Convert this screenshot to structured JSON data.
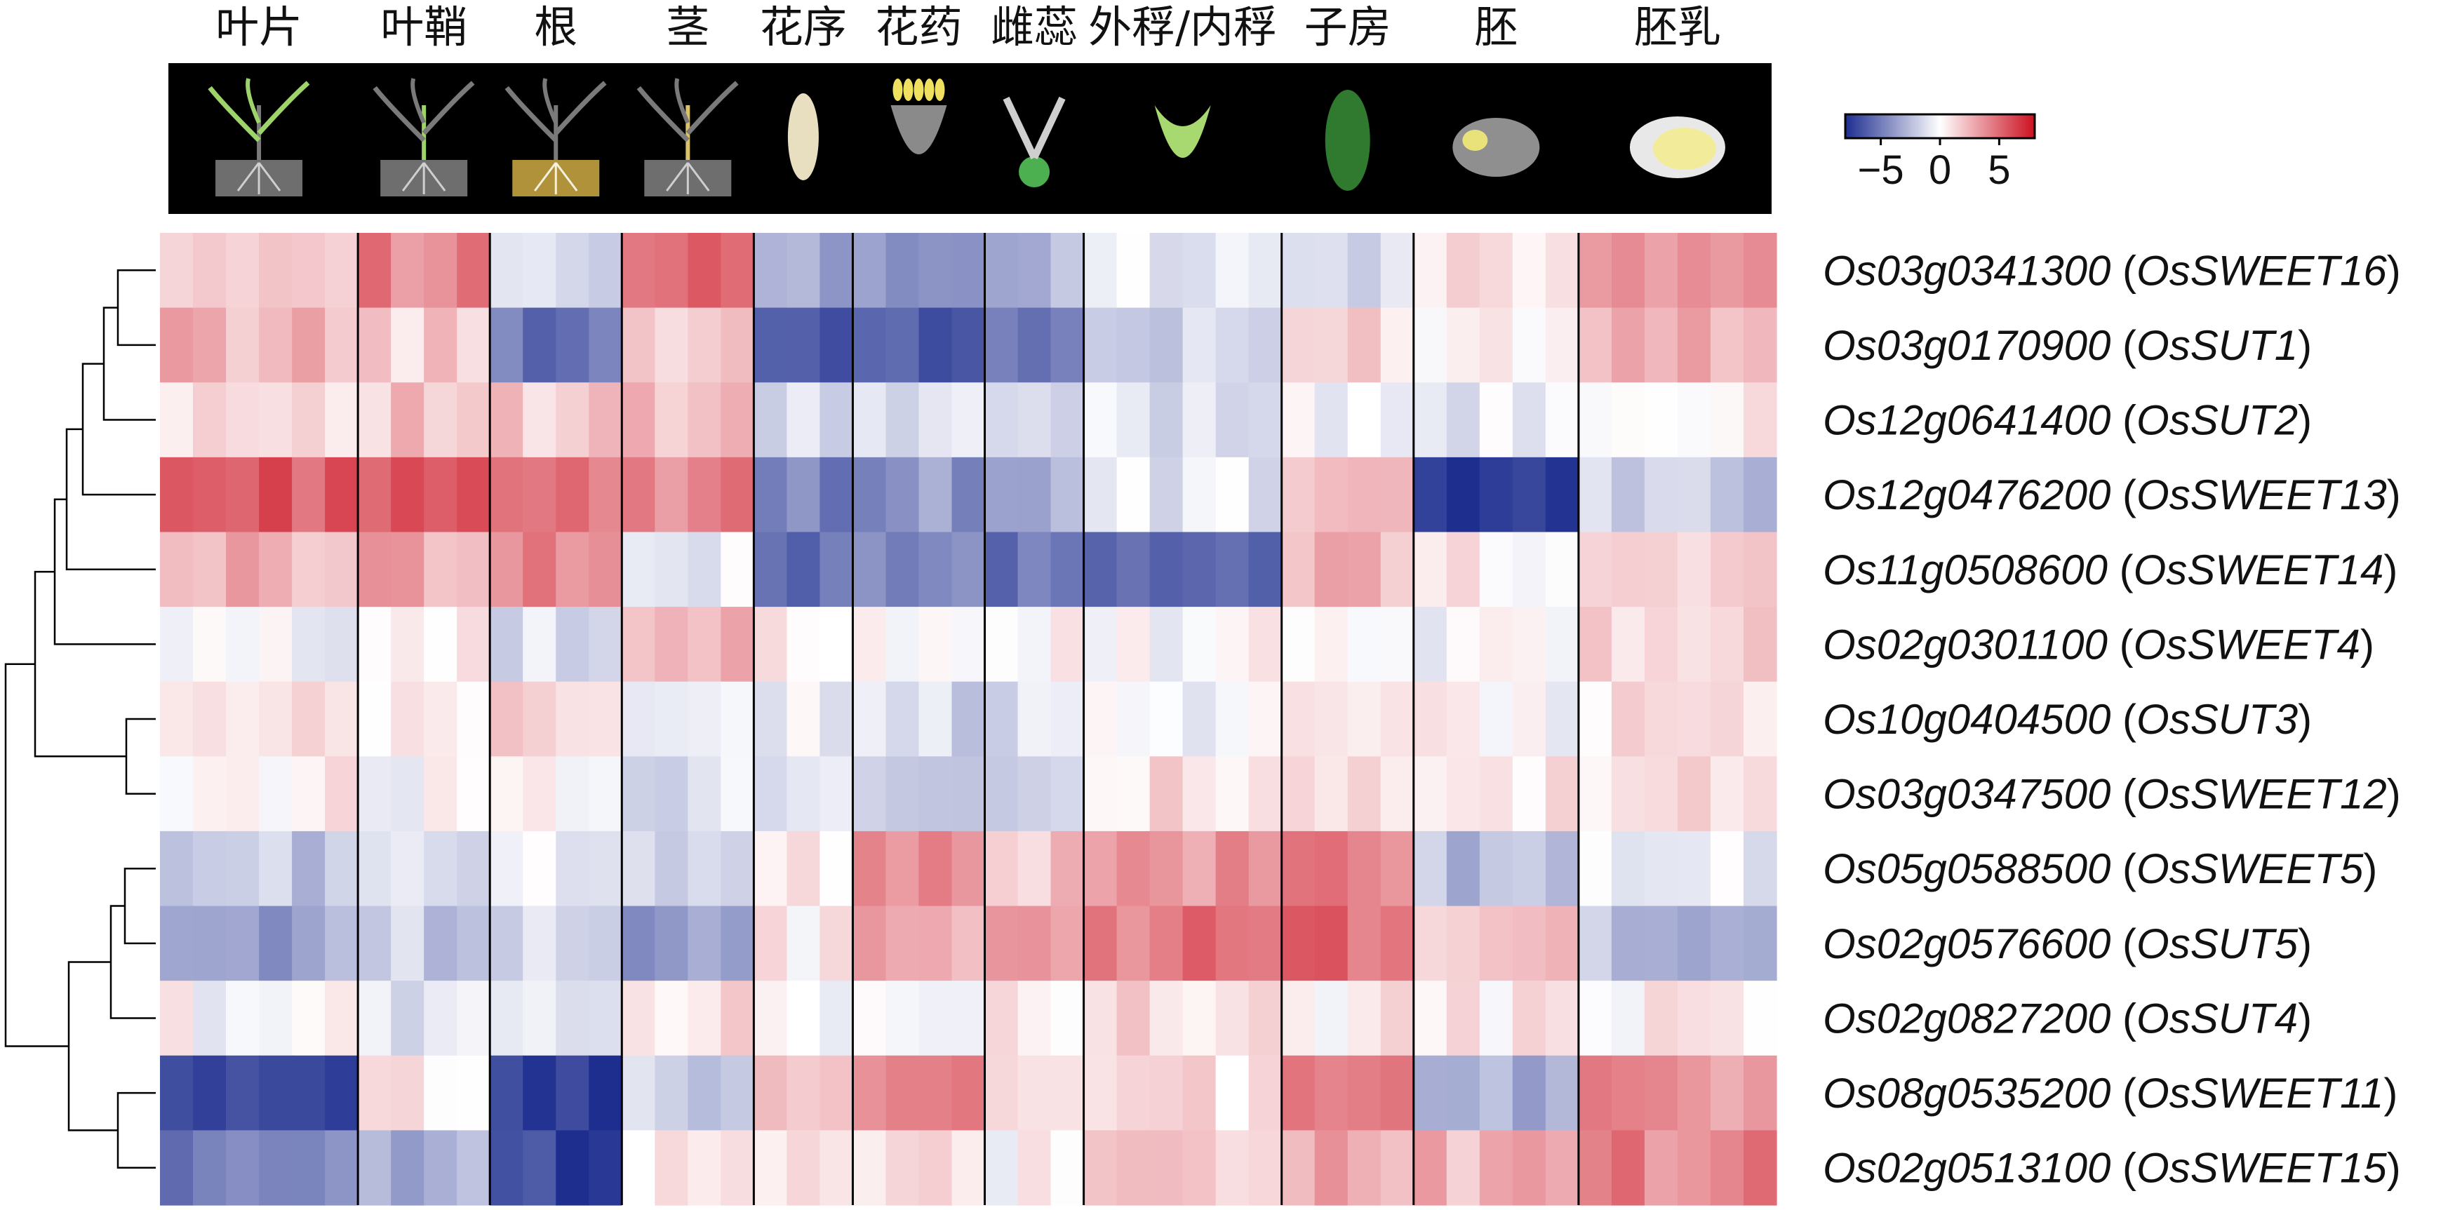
{
  "chart_data": {
    "type": "heatmap",
    "tissues": [
      "叶片",
      "叶鞘",
      "根",
      "茎",
      "花序",
      "花药",
      "雌蕊",
      "外稃/内稃",
      "子房",
      "胚",
      "胚乳"
    ],
    "tissue_replicates": [
      6,
      4,
      4,
      4,
      3,
      4,
      3,
      6,
      4,
      5,
      6
    ],
    "genes": [
      {
        "id": "Os03g0341300",
        "name": "OsSWEET16"
      },
      {
        "id": "Os03g0170900",
        "name": "OsSUT1"
      },
      {
        "id": "Os12g0641400",
        "name": "OsSUT2"
      },
      {
        "id": "Os12g0476200",
        "name": "OsSWEET13"
      },
      {
        "id": "Os11g0508600",
        "name": "OsSWEET14"
      },
      {
        "id": "Os02g0301100",
        "name": "OsSWEET4"
      },
      {
        "id": "Os10g0404500",
        "name": "OsSUT3"
      },
      {
        "id": "Os03g0347500",
        "name": "OsSWEET12"
      },
      {
        "id": "Os05g0588500",
        "name": "OsSWEET5"
      },
      {
        "id": "Os02g0576600",
        "name": "OsSUT5"
      },
      {
        "id": "Os02g0827200",
        "name": "OsSUT4"
      },
      {
        "id": "Os08g0535200",
        "name": "OsSWEET11"
      },
      {
        "id": "Os02g0513100",
        "name": "OsSWEET15"
      }
    ],
    "tissue_means": [
      [
        2.5,
        4.0,
        -1.5,
        4.5,
        -3.5,
        -4.0,
        -3.0,
        -1.0,
        -1.5,
        1.0,
        3.5
      ],
      [
        2.5,
        1.5,
        -5.0,
        2.0,
        -6.0,
        -6.5,
        -5.0,
        -2.0,
        1.5,
        0.5,
        3.0
      ],
      [
        1.5,
        2.0,
        1.5,
        2.0,
        -1.5,
        -1.5,
        -1.5,
        -1.0,
        0.0,
        -1.0,
        0.5
      ],
      [
        5.5,
        6.0,
        4.0,
        4.0,
        -4.5,
        -4.0,
        -3.0,
        -1.0,
        1.5,
        -7.5,
        -2.0
      ],
      [
        2.5,
        3.0,
        4.0,
        -1.0,
        -5.5,
        -4.0,
        -5.5,
        -6.0,
        2.5,
        0.5,
        1.5
      ],
      [
        -0.5,
        1.0,
        -1.5,
        2.0,
        1.0,
        0.5,
        0.5,
        0.0,
        0.5,
        -0.5,
        1.5
      ],
      [
        0.5,
        0.5,
        1.5,
        -1.0,
        -0.5,
        -1.5,
        -1.0,
        0.0,
        0.5,
        0.0,
        1.0
      ],
      [
        0.5,
        0.0,
        0.5,
        -1.0,
        -0.5,
        -1.5,
        -1.5,
        1.0,
        0.5,
        0.5,
        1.0
      ],
      [
        -2.0,
        -1.5,
        -1.0,
        -1.0,
        0.5,
        4.0,
        2.0,
        3.5,
        4.0,
        -2.5,
        -1.0
      ],
      [
        -3.5,
        -2.0,
        -1.0,
        -4.0,
        0.5,
        3.0,
        3.0,
        4.5,
        5.0,
        2.0,
        -2.5
      ],
      [
        0.0,
        -1.0,
        -0.5,
        1.0,
        0.0,
        0.5,
        1.0,
        1.0,
        0.5,
        0.5,
        0.5
      ],
      [
        -7.5,
        0.5,
        -7.5,
        -2.0,
        2.5,
        3.5,
        2.0,
        1.0,
        4.5,
        -3.0,
        3.5
      ],
      [
        -5.0,
        -3.0,
        -7.0,
        1.0,
        0.5,
        1.5,
        0.0,
        1.5,
        3.0,
        2.5,
        4.0
      ]
    ],
    "colorbar": {
      "min": -8,
      "max": 8,
      "ticks": [
        "−5",
        "0",
        "5"
      ],
      "low_color": "#1e2e8f",
      "mid_color": "#ffffff",
      "high_color": "#cc1020"
    },
    "dendrogram": "hierarchical clustering of rows",
    "legend_placement": "top-right"
  }
}
